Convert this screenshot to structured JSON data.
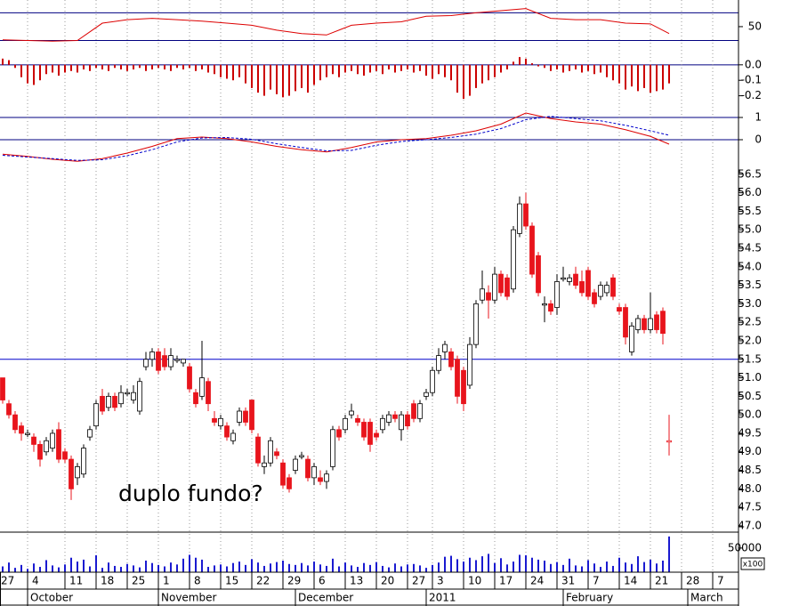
{
  "chart_data": [
    {
      "type": "line",
      "ylim": [
        5,
        82
      ],
      "yticks": [
        50
      ],
      "levels": [
        70,
        30
      ],
      "level_color": "#000080",
      "series": [
        {
          "color": "#dd0000",
          "x": [
            0,
            4,
            8,
            12,
            16,
            20,
            24,
            28,
            32,
            36,
            40,
            44,
            48,
            52,
            56,
            60,
            64,
            68,
            72,
            76,
            80,
            84,
            88,
            92,
            96,
            100,
            104,
            107
          ],
          "values": [
            31,
            30,
            29,
            30,
            55,
            60,
            62,
            60,
            58,
            55,
            52,
            45,
            40,
            38,
            52,
            55,
            57,
            65,
            66,
            70,
            73,
            76,
            62,
            60,
            60,
            55,
            54,
            40
          ]
        }
      ]
    },
    {
      "type": "bar",
      "ylim": [
        -0.3,
        0.045
      ],
      "yticks": [
        {
          "value": 0,
          "label": "0.0"
        },
        -0.1,
        -0.2
      ],
      "color": "#cc0000",
      "values": [
        0.04,
        0.03,
        -0.02,
        -0.08,
        -0.12,
        -0.13,
        -0.1,
        -0.06,
        -0.05,
        -0.07,
        -0.05,
        -0.04,
        -0.05,
        -0.03,
        -0.04,
        -0.02,
        -0.03,
        -0.04,
        -0.02,
        -0.03,
        -0.04,
        -0.03,
        -0.02,
        -0.04,
        -0.03,
        -0.02,
        -0.03,
        -0.04,
        -0.02,
        -0.03,
        -0.02,
        -0.04,
        -0.03,
        -0.05,
        -0.06,
        -0.08,
        -0.09,
        -0.1,
        -0.08,
        -0.12,
        -0.15,
        -0.18,
        -0.2,
        -0.16,
        -0.19,
        -0.21,
        -0.2,
        -0.17,
        -0.15,
        -0.18,
        -0.13,
        -0.1,
        -0.08,
        -0.06,
        -0.08,
        -0.05,
        -0.04,
        -0.06,
        -0.07,
        -0.05,
        -0.04,
        -0.06,
        -0.03,
        -0.05,
        -0.04,
        -0.03,
        -0.05,
        -0.04,
        -0.07,
        -0.09,
        -0.06,
        -0.08,
        -0.1,
        -0.18,
        -0.22,
        -0.2,
        -0.15,
        -0.12,
        -0.1,
        -0.08,
        -0.05,
        -0.03,
        0.02,
        0.05,
        0.04,
        0.01,
        -0.01,
        -0.02,
        -0.04,
        -0.03,
        -0.05,
        -0.04,
        -0.03,
        -0.05,
        -0.04,
        -0.06,
        -0.05,
        -0.08,
        -0.1,
        -0.12,
        -0.16,
        -0.14,
        -0.17,
        -0.15,
        -0.18,
        -0.17,
        -0.16,
        -0.12
      ]
    },
    {
      "type": "line",
      "ylim": [
        -1.12,
        1.28
      ],
      "yticks": [
        1,
        0
      ],
      "zero_line": true,
      "series": [
        {
          "color": "#dd0000",
          "x": [
            0,
            4,
            8,
            12,
            16,
            20,
            24,
            28,
            32,
            36,
            40,
            44,
            48,
            52,
            56,
            60,
            64,
            68,
            72,
            76,
            80,
            84,
            88,
            92,
            96,
            100,
            104,
            107
          ],
          "values": [
            -0.65,
            -0.75,
            -0.88,
            -0.97,
            -0.85,
            -0.6,
            -0.3,
            0.05,
            0.12,
            0.05,
            -0.1,
            -0.3,
            -0.45,
            -0.55,
            -0.35,
            -0.1,
            0.0,
            0.05,
            0.2,
            0.4,
            0.7,
            1.2,
            0.95,
            0.8,
            0.7,
            0.45,
            0.15,
            -0.2
          ]
        },
        {
          "color": "#0000cc",
          "dashed": true,
          "x": [
            0,
            4,
            8,
            12,
            16,
            20,
            24,
            28,
            32,
            36,
            40,
            44,
            48,
            52,
            56,
            60,
            64,
            68,
            72,
            76,
            80,
            84,
            88,
            92,
            96,
            100,
            104,
            107
          ],
          "values": [
            -0.7,
            -0.78,
            -0.85,
            -0.93,
            -0.9,
            -0.72,
            -0.45,
            -0.1,
            0.08,
            0.1,
            0.02,
            -0.18,
            -0.35,
            -0.5,
            -0.48,
            -0.25,
            -0.08,
            0.0,
            0.1,
            0.25,
            0.5,
            0.9,
            1.05,
            0.95,
            0.85,
            0.65,
            0.4,
            0.2
          ]
        }
      ]
    },
    {
      "type": "candlestick",
      "ylim": [
        46.83,
        56.76
      ],
      "yticks": [
        56.5,
        {
          "value": 56,
          "label": "56.0"
        },
        55.5,
        {
          "value": 55,
          "label": "55.0"
        },
        54.5,
        {
          "value": 54,
          "label": "54.0"
        },
        53.5,
        {
          "value": 53,
          "label": "53.0"
        },
        52.5,
        {
          "value": 52,
          "label": "52.0"
        },
        51.5,
        {
          "value": 51,
          "label": "51.0"
        },
        50.5,
        {
          "value": 50,
          "label": "50.0"
        },
        49.5,
        {
          "value": 49,
          "label": "49.0"
        },
        48.5,
        {
          "value": 48,
          "label": "48.0"
        },
        47.5,
        {
          "value": 47,
          "label": "47.0"
        }
      ],
      "hlines": [
        51.5
      ],
      "hline_color": "#0000cc",
      "up_color": "#ffffff",
      "down_color": "#e8141c",
      "annotation": "duplo fundo?",
      "annotation_color": "#0000dd",
      "candles": [
        [
          51.0,
          51.0,
          50.3,
          50.4
        ],
        [
          50.3,
          50.4,
          49.9,
          50.0
        ],
        [
          50.0,
          50.1,
          49.5,
          49.6
        ],
        [
          49.7,
          49.8,
          49.3,
          49.5
        ],
        [
          49.5,
          49.6,
          49.4,
          49.5
        ],
        [
          49.4,
          49.5,
          49.0,
          49.2
        ],
        [
          49.2,
          49.3,
          48.6,
          48.8
        ],
        [
          49.0,
          49.4,
          48.9,
          49.3
        ],
        [
          49.1,
          49.6,
          49.0,
          49.5
        ],
        [
          49.6,
          49.8,
          48.7,
          48.8
        ],
        [
          49.0,
          49.1,
          48.7,
          48.8
        ],
        [
          48.8,
          48.9,
          47.7,
          48.0
        ],
        [
          48.3,
          48.7,
          48.1,
          48.6
        ],
        [
          48.4,
          49.2,
          48.3,
          49.1
        ],
        [
          49.4,
          49.7,
          49.3,
          49.6
        ],
        [
          49.7,
          50.4,
          49.6,
          50.3
        ],
        [
          50.5,
          50.7,
          50.0,
          50.1
        ],
        [
          50.2,
          50.6,
          50.1,
          50.5
        ],
        [
          50.5,
          50.6,
          50.1,
          50.2
        ],
        [
          50.3,
          50.8,
          50.2,
          50.6
        ],
        [
          50.6,
          50.7,
          50.5,
          50.6
        ],
        [
          50.4,
          50.8,
          50.3,
          50.6
        ],
        [
          50.1,
          51.0,
          50.0,
          50.9
        ],
        [
          51.3,
          51.7,
          51.2,
          51.5
        ],
        [
          51.5,
          51.8,
          51.3,
          51.7
        ],
        [
          51.7,
          51.8,
          51.1,
          51.2
        ],
        [
          51.6,
          51.8,
          51.2,
          51.3
        ],
        [
          51.3,
          51.8,
          51.2,
          51.6
        ],
        [
          51.5,
          51.6,
          51.4,
          51.5
        ],
        [
          51.4,
          51.5,
          51.3,
          51.5
        ],
        [
          51.3,
          51.4,
          50.6,
          50.7
        ],
        [
          50.6,
          50.7,
          50.2,
          50.3
        ],
        [
          50.5,
          52.0,
          50.4,
          51.0
        ],
        [
          50.9,
          51.0,
          50.1,
          50.3
        ],
        [
          49.9,
          50.1,
          49.7,
          49.8
        ],
        [
          49.7,
          50.0,
          49.6,
          49.9
        ],
        [
          49.7,
          49.8,
          49.3,
          49.4
        ],
        [
          49.3,
          49.6,
          49.2,
          49.5
        ],
        [
          49.8,
          50.2,
          49.7,
          50.1
        ],
        [
          50.1,
          50.2,
          49.7,
          49.8
        ],
        [
          50.4,
          50.4,
          49.5,
          49.6
        ],
        [
          49.4,
          49.5,
          48.6,
          48.7
        ],
        [
          48.6,
          48.9,
          48.4,
          48.7
        ],
        [
          48.7,
          49.4,
          48.6,
          49.3
        ],
        [
          49.0,
          49.1,
          48.8,
          48.9
        ],
        [
          48.7,
          48.8,
          48.0,
          48.1
        ],
        [
          48.3,
          48.4,
          47.9,
          48.0
        ],
        [
          48.5,
          48.9,
          48.4,
          48.8
        ],
        [
          48.9,
          49.0,
          48.8,
          48.9
        ],
        [
          48.8,
          48.9,
          48.2,
          48.3
        ],
        [
          48.3,
          48.7,
          48.1,
          48.6
        ],
        [
          48.3,
          48.5,
          48.1,
          48.2
        ],
        [
          48.2,
          48.5,
          48.0,
          48.4
        ],
        [
          48.6,
          49.7,
          48.5,
          49.6
        ],
        [
          49.6,
          49.7,
          49.3,
          49.4
        ],
        [
          49.6,
          50.0,
          49.5,
          49.9
        ],
        [
          50.0,
          50.3,
          49.9,
          50.1
        ],
        [
          49.9,
          50.0,
          49.7,
          49.8
        ],
        [
          49.8,
          49.9,
          49.3,
          49.4
        ],
        [
          49.8,
          49.9,
          49.0,
          49.2
        ],
        [
          49.5,
          49.6,
          49.3,
          49.4
        ],
        [
          49.6,
          50.0,
          49.5,
          49.9
        ],
        [
          49.8,
          50.1,
          49.7,
          50.0
        ],
        [
          50.0,
          50.1,
          49.8,
          49.9
        ],
        [
          49.6,
          50.1,
          49.3,
          50.0
        ],
        [
          50.0,
          50.1,
          49.6,
          49.7
        ],
        [
          50.3,
          50.4,
          49.8,
          49.9
        ],
        [
          49.9,
          50.4,
          49.8,
          50.3
        ],
        [
          50.5,
          50.7,
          50.4,
          50.6
        ],
        [
          50.6,
          51.3,
          50.5,
          51.2
        ],
        [
          51.2,
          51.8,
          51.1,
          51.6
        ],
        [
          51.7,
          52.0,
          51.5,
          51.9
        ],
        [
          51.7,
          51.8,
          51.2,
          51.3
        ],
        [
          51.5,
          51.6,
          50.3,
          50.5
        ],
        [
          51.2,
          51.3,
          50.1,
          50.3
        ],
        [
          50.8,
          52.1,
          50.7,
          51.9
        ],
        [
          51.9,
          53.1,
          51.8,
          53.0
        ],
        [
          53.1,
          53.9,
          53.0,
          53.4
        ],
        [
          53.3,
          53.5,
          52.6,
          53.1
        ],
        [
          53.1,
          54.0,
          53.0,
          53.8
        ],
        [
          53.8,
          53.9,
          53.2,
          53.3
        ],
        [
          53.7,
          53.8,
          53.1,
          53.2
        ],
        [
          53.4,
          55.1,
          53.3,
          55.0
        ],
        [
          54.9,
          55.9,
          54.8,
          55.7
        ],
        [
          55.7,
          56.0,
          55.0,
          55.1
        ],
        [
          55.1,
          55.2,
          53.7,
          53.8
        ],
        [
          54.3,
          54.4,
          53.2,
          53.3
        ],
        [
          53.0,
          53.2,
          52.5,
          53.0
        ],
        [
          53.0,
          53.1,
          52.7,
          52.8
        ],
        [
          52.9,
          53.8,
          52.7,
          53.6
        ],
        [
          53.7,
          54.0,
          53.6,
          53.7
        ],
        [
          53.6,
          53.8,
          53.5,
          53.7
        ],
        [
          53.8,
          54.0,
          53.4,
          53.5
        ],
        [
          53.6,
          53.9,
          53.2,
          53.3
        ],
        [
          53.9,
          54.0,
          53.1,
          53.2
        ],
        [
          53.3,
          53.4,
          52.9,
          53.0
        ],
        [
          53.2,
          53.6,
          53.1,
          53.5
        ],
        [
          53.3,
          53.6,
          53.2,
          53.5
        ],
        [
          53.7,
          53.8,
          53.1,
          53.2
        ],
        [
          52.9,
          53.0,
          52.7,
          52.8
        ],
        [
          52.9,
          53.0,
          51.9,
          52.1
        ],
        [
          51.7,
          52.5,
          51.6,
          52.4
        ],
        [
          52.3,
          52.7,
          52.2,
          52.6
        ],
        [
          52.6,
          52.7,
          52.2,
          52.3
        ],
        [
          52.3,
          53.3,
          52.2,
          52.6
        ],
        [
          52.7,
          52.8,
          52.2,
          52.3
        ],
        [
          52.8,
          52.9,
          51.9,
          52.2
        ],
        [
          49.3,
          50.0,
          48.9,
          49.3
        ]
      ],
      "xticks": [
        {
          "value": -1,
          "label": "27"
        },
        4,
        {
          "value": 10,
          "label": "11"
        },
        {
          "value": 15,
          "label": "18"
        },
        {
          "value": 20,
          "label": "25"
        },
        {
          "value": 25,
          "label": "1"
        },
        {
          "value": 30,
          "label": "8"
        },
        {
          "value": 35,
          "label": "15"
        },
        {
          "value": 40,
          "label": "22"
        },
        {
          "value": 45,
          "label": "29"
        },
        {
          "value": 50,
          "label": "6"
        },
        {
          "value": 55,
          "label": "13"
        },
        {
          "value": 60,
          "label": "20"
        },
        {
          "value": 65,
          "label": "27"
        },
        {
          "value": 69,
          "label": "3"
        },
        {
          "value": 74,
          "label": "10"
        },
        {
          "value": 79,
          "label": "17"
        },
        {
          "value": 84,
          "label": "24"
        },
        {
          "value": 89,
          "label": "31"
        },
        {
          "value": 94,
          "label": "7"
        },
        {
          "value": 99,
          "label": "14"
        },
        {
          "value": 104,
          "label": "21"
        },
        {
          "value": 109,
          "label": "28"
        },
        {
          "value": 114,
          "label": "7"
        }
      ],
      "months": [
        {
          "value": 4,
          "label": "October"
        },
        {
          "value": 25,
          "label": "November"
        },
        {
          "value": 47,
          "label": "December"
        },
        {
          "value": 68,
          "label": "2011"
        },
        {
          "value": 90,
          "label": "February"
        },
        {
          "value": 110,
          "label": "March"
        }
      ]
    },
    {
      "type": "bar",
      "ylim": [
        0,
        83000
      ],
      "yticks": [
        50000
      ],
      "color": "#1a1ad0",
      "multiplier": "x100",
      "values": [
        12000,
        20000,
        9000,
        15000,
        7000,
        18000,
        11000,
        25000,
        14000,
        10000,
        16000,
        30000,
        22000,
        26000,
        12000,
        35000,
        9000,
        20000,
        13000,
        11000,
        17000,
        14000,
        10000,
        24000,
        19000,
        15000,
        12000,
        20000,
        16000,
        28000,
        36000,
        30000,
        26000,
        11000,
        14000,
        16000,
        12000,
        19000,
        22000,
        15000,
        27000,
        20000,
        13000,
        18000,
        21000,
        24000,
        17000,
        15000,
        19000,
        14000,
        22000,
        16000,
        13000,
        28000,
        12000,
        20000,
        14000,
        11000,
        19000,
        15000,
        21000,
        13000,
        10000,
        18000,
        12000,
        16000,
        17000,
        14000,
        9000,
        15000,
        20000,
        32000,
        34000,
        27000,
        22000,
        30000,
        25000,
        33000,
        38000,
        19000,
        29000,
        16000,
        22000,
        36000,
        35000,
        30000,
        26000,
        24000,
        17000,
        21000,
        15000,
        28000,
        14000,
        12000,
        25000,
        18000,
        11000,
        22000,
        13000,
        30000,
        20000,
        17000,
        33000,
        21000,
        26000,
        18000,
        24000,
        74000
      ]
    }
  ]
}
